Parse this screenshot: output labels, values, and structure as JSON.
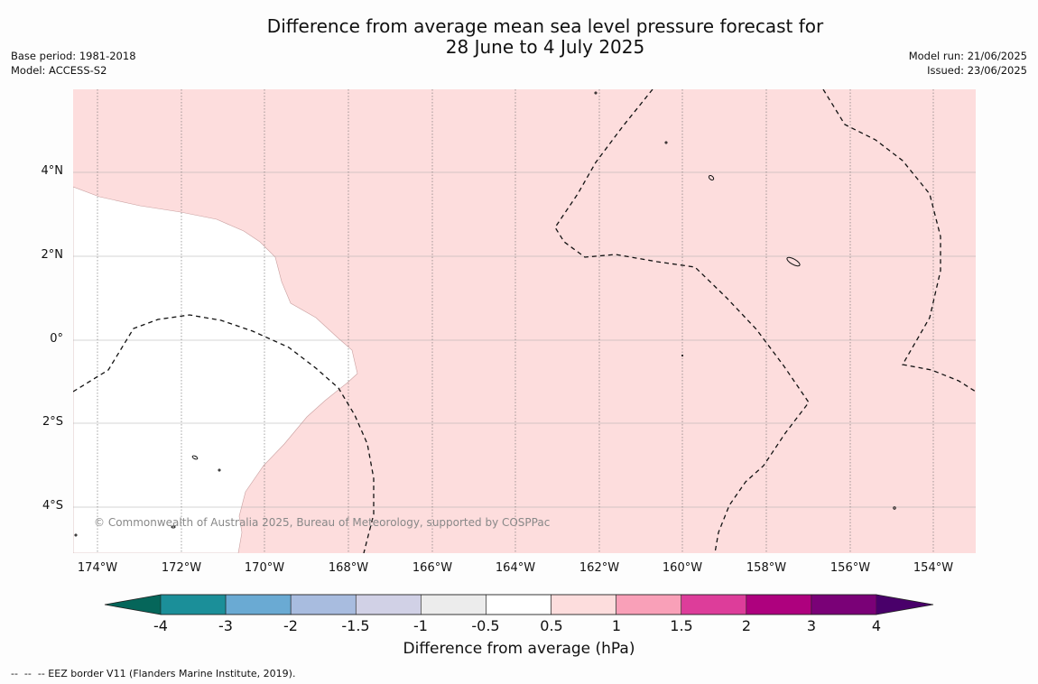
{
  "header": {
    "title_line1": "Difference from average mean sea level pressure forecast for",
    "title_line2": "28 June to 4 July 2025",
    "base_period": "Base period: 1981-2018",
    "model": "Model: ACCESS-S2",
    "model_run": "Model run: 21/06/2025",
    "issued": "Issued: 23/06/2025"
  },
  "map": {
    "lat_labels": [
      "4°N",
      "2°N",
      "0°",
      "2°S",
      "4°S"
    ],
    "lon_labels": [
      "174°W",
      "172°W",
      "170°W",
      "168°W",
      "166°W",
      "164°W",
      "162°W",
      "160°W",
      "158°W",
      "156°W",
      "154°W"
    ],
    "copyright": "© Commonwealth of Australia 2025, Bureau of Meteorology, supported by COSPPac",
    "fill_colors": {
      "positive_0_5_to_1": "#fddddd",
      "neutral": "#ffffff"
    }
  },
  "colorbar": {
    "tick_labels": [
      "-4",
      "-3",
      "-2",
      "-1.5",
      "-1",
      "-0.5",
      "0.5",
      "1",
      "1.5",
      "2",
      "3",
      "4"
    ],
    "label": "Difference from average (hPa)",
    "colors": {
      "under": "#05665a",
      "bins": [
        "#1b8f99",
        "#6aaad3",
        "#a8bcdf",
        "#d1d1e6",
        "#ececec",
        "#ffffff",
        "#fddddd",
        "#f9a0b8",
        "#dd3d9a",
        "#ae017e",
        "#7a0177"
      ],
      "over": "#49006a"
    }
  },
  "legend": {
    "eez_note": "--  --  -- EEZ border V11 (Flanders Marine Institute, 2019)."
  }
}
